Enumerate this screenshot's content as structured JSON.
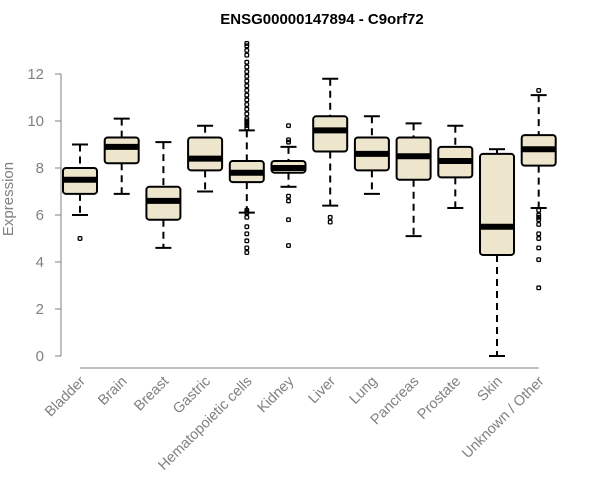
{
  "chart_data": {
    "type": "boxplot",
    "title": "ENSG00000147894 - C9orf72",
    "ylabel": "Expression",
    "xlabel": "",
    "ylim": [
      0,
      13.5
    ],
    "yticks": [
      0,
      2,
      4,
      6,
      8,
      10,
      12
    ],
    "grid": false,
    "legend": "none",
    "box_color": "#ede6cc",
    "categories": [
      "Bladder",
      "Brain",
      "Breast",
      "Gastric",
      "Hematopoietic cells",
      "Kidney",
      "Liver",
      "Lung",
      "Pancreas",
      "Prostate",
      "Skin",
      "Unknown / Other"
    ],
    "boxes": [
      {
        "category": "Bladder",
        "whisker_low": 6.0,
        "q1": 6.9,
        "median": 7.5,
        "q3": 8.0,
        "whisker_high": 9.0,
        "outliers": [
          5.0
        ]
      },
      {
        "category": "Brain",
        "whisker_low": 6.9,
        "q1": 8.2,
        "median": 8.9,
        "q3": 9.3,
        "whisker_high": 10.1,
        "outliers": []
      },
      {
        "category": "Breast",
        "whisker_low": 4.6,
        "q1": 5.8,
        "median": 6.6,
        "q3": 7.2,
        "whisker_high": 9.1,
        "outliers": []
      },
      {
        "category": "Gastric",
        "whisker_low": 7.0,
        "q1": 7.9,
        "median": 8.4,
        "q3": 9.3,
        "whisker_high": 9.8,
        "outliers": []
      },
      {
        "category": "Hematopoietic cells",
        "whisker_low": 6.1,
        "q1": 7.4,
        "median": 7.8,
        "q3": 8.3,
        "whisker_high": 9.6,
        "outliers": [
          4.4,
          4.6,
          4.9,
          5.2,
          5.5,
          5.9,
          6.1,
          6.2,
          9.7,
          9.8,
          9.9,
          10.0,
          10.1,
          10.3,
          10.5,
          10.7,
          10.9,
          11.1,
          11.3,
          11.5,
          11.7,
          11.9,
          12.1,
          12.3,
          12.5,
          12.8,
          13.0,
          13.2,
          13.3
        ]
      },
      {
        "category": "Kidney",
        "whisker_low": 7.2,
        "q1": 7.8,
        "median": 8.0,
        "q3": 8.3,
        "whisker_high": 8.9,
        "outliers": [
          4.7,
          5.8,
          6.6,
          6.8,
          9.1,
          9.2,
          9.8
        ]
      },
      {
        "category": "Liver",
        "whisker_low": 6.4,
        "q1": 8.7,
        "median": 9.6,
        "q3": 10.2,
        "whisker_high": 11.8,
        "outliers": [
          5.7,
          5.9
        ]
      },
      {
        "category": "Lung",
        "whisker_low": 6.9,
        "q1": 7.9,
        "median": 8.6,
        "q3": 9.3,
        "whisker_high": 10.2,
        "outliers": []
      },
      {
        "category": "Pancreas",
        "whisker_low": 5.1,
        "q1": 7.5,
        "median": 8.5,
        "q3": 9.3,
        "whisker_high": 9.9,
        "outliers": []
      },
      {
        "category": "Prostate",
        "whisker_low": 6.3,
        "q1": 7.6,
        "median": 8.3,
        "q3": 8.9,
        "whisker_high": 9.8,
        "outliers": []
      },
      {
        "category": "Skin",
        "whisker_low": 0.0,
        "q1": 4.3,
        "median": 5.5,
        "q3": 8.6,
        "whisker_high": 8.8,
        "outliers": []
      },
      {
        "category": "Unknown / Other",
        "whisker_low": 6.3,
        "q1": 8.1,
        "median": 8.8,
        "q3": 9.4,
        "whisker_high": 11.1,
        "outliers": [
          2.9,
          4.1,
          4.6,
          5.0,
          5.2,
          5.6,
          5.8,
          5.9,
          6.0,
          6.2,
          11.3
        ]
      }
    ]
  }
}
